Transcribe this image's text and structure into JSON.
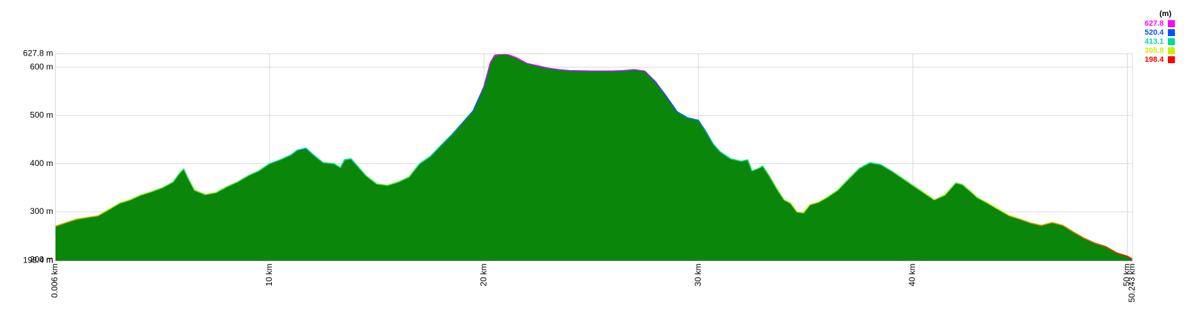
{
  "chart_data": {
    "type": "area",
    "x": [
      0.006,
      1,
      2,
      2.5,
      3,
      3.5,
      4,
      4.5,
      5,
      5.5,
      5.8,
      6,
      6.2,
      6.5,
      7,
      7.5,
      8,
      8.5,
      9,
      9.5,
      10,
      10.5,
      11,
      11.3,
      11.7,
      12,
      12.5,
      13,
      13.3,
      13.5,
      13.8,
      14,
      14.5,
      15,
      15.5,
      16,
      16.5,
      17,
      17.5,
      18,
      18.5,
      19,
      19.5,
      20,
      20.3,
      20.5,
      21,
      21.5,
      22,
      22.5,
      23,
      23.5,
      24,
      25,
      26,
      26.5,
      27,
      27.5,
      28,
      28.5,
      29,
      29.5,
      30,
      30.3,
      30.7,
      31,
      31.5,
      32,
      32.3,
      32.5,
      32.8,
      33,
      33.3,
      33.7,
      34,
      34.3,
      34.6,
      34.9,
      35.2,
      35.6,
      36,
      36.5,
      37,
      37.5,
      38,
      38.5,
      39,
      39.5,
      40,
      40.5,
      41,
      41.5,
      42,
      42.3,
      42.7,
      43,
      43.5,
      44,
      44.5,
      45,
      45.5,
      46,
      46.5,
      47,
      47.5,
      48,
      48.5,
      49,
      49.5,
      50,
      50.2,
      50.243
    ],
    "y": [
      270,
      285,
      292,
      305,
      318,
      325,
      335,
      342,
      350,
      362,
      380,
      389,
      370,
      345,
      336,
      340,
      352,
      362,
      375,
      385,
      400,
      408,
      418,
      428,
      432,
      420,
      402,
      400,
      392,
      408,
      410,
      400,
      375,
      358,
      355,
      362,
      372,
      400,
      415,
      438,
      460,
      485,
      510,
      560,
      610,
      625,
      627.8,
      620,
      608,
      603,
      598,
      595,
      593,
      592,
      592,
      593,
      595,
      592,
      570,
      540,
      508,
      495,
      490,
      470,
      440,
      425,
      410,
      405,
      408,
      385,
      390,
      395,
      375,
      345,
      325,
      318,
      300,
      298,
      315,
      320,
      330,
      345,
      368,
      390,
      402,
      398,
      385,
      370,
      355,
      340,
      325,
      335,
      360,
      357,
      342,
      330,
      318,
      305,
      292,
      285,
      277,
      272,
      278,
      272,
      258,
      245,
      235,
      228,
      215,
      208,
      203,
      198.4
    ],
    "fill_color": "#0a870a",
    "xlim": [
      0.006,
      50.243
    ],
    "ylim": [
      198.4,
      627.8
    ],
    "xticks": [
      {
        "value": 0.006,
        "label": "0.006 km"
      },
      {
        "value": 10,
        "label": "10 km"
      },
      {
        "value": 20,
        "label": "20 km"
      },
      {
        "value": 30,
        "label": "30 km"
      },
      {
        "value": 40,
        "label": "40 km"
      },
      {
        "value": 50,
        "label": "50 km"
      },
      {
        "value": 50.243,
        "label": "50.243 km"
      }
    ],
    "yticks": [
      {
        "value": 198.4,
        "label": "198.4 m"
      },
      {
        "value": 200,
        "label": "200 m"
      },
      {
        "value": 300,
        "label": "300 m"
      },
      {
        "value": 400,
        "label": "400 m"
      },
      {
        "value": 500,
        "label": "500 m"
      },
      {
        "value": 600,
        "label": "600 m"
      },
      {
        "value": 627.8,
        "label": "627.8 m"
      }
    ],
    "grid": true,
    "legend_title": "(m)",
    "color_scale": [
      {
        "value": 627.8,
        "color": "#ff00ff"
      },
      {
        "value": 520.4,
        "color": "#0050ff"
      },
      {
        "value": 413.1,
        "color": "#00d8a0"
      },
      {
        "value": 305.8,
        "color": "#c8f000"
      },
      {
        "value": 198.4,
        "color": "#ff0000"
      }
    ]
  }
}
